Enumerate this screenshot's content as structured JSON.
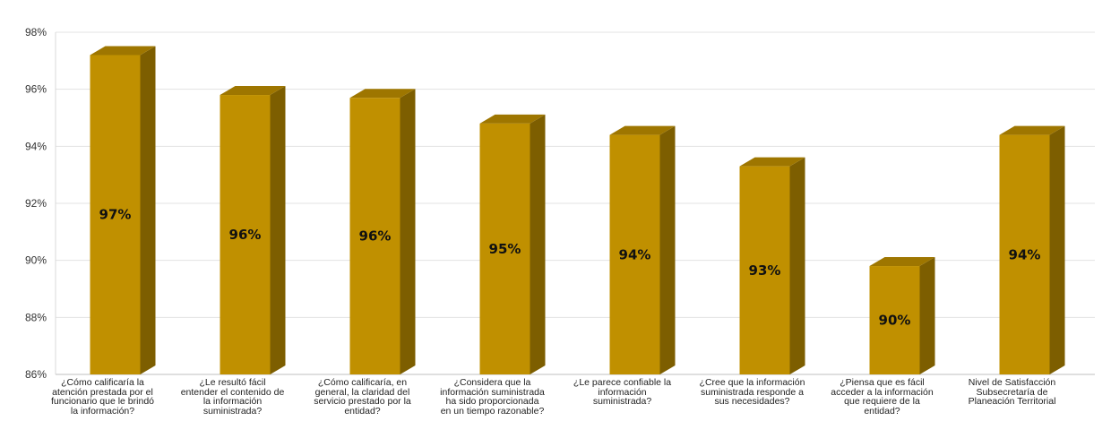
{
  "chart_data": {
    "type": "bar",
    "categories": [
      "¿Cómo calificaría la atención prestada por el funcionario que le brindó la información?",
      "¿Le resultó fácil entender el contenido de la información suministrada?",
      "¿Cómo calificaría, en general, la claridad del servicio prestado por la entidad?",
      "¿Considera que la información suministrada ha sido proporcionada en un tiempo razonable?",
      "¿Le parece confiable la información suministrada?",
      "¿Cree que la información suministrada responde a sus necesidades?",
      "¿Piensa que es fácil acceder a la información que requiere de la entidad?",
      "Nivel de Satisfacción Subsecretaría de Planeación Territorial"
    ],
    "values": [
      97.2,
      95.8,
      95.7,
      94.8,
      94.4,
      93.3,
      89.8,
      94.4
    ],
    "data_labels": [
      "97%",
      "96%",
      "96%",
      "95%",
      "94%",
      "93%",
      "90%",
      "94%"
    ],
    "title": "",
    "xlabel": "",
    "ylabel": "",
    "ylim": [
      86,
      98
    ],
    "yticks": [
      "86%",
      "88%",
      "90%",
      "92%",
      "94%",
      "96%",
      "98%"
    ],
    "grid": true,
    "bar_color": "#C09000",
    "bar_side_color": "#7D5E00",
    "bar_top_color": "#9E7600"
  }
}
